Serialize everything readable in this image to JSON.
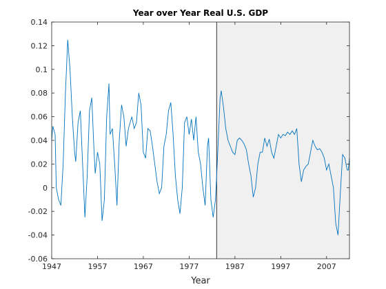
{
  "chart_data": {
    "type": "line",
    "title": "Year over Year Real U.S. GDP",
    "xlabel": "Year",
    "x": [
      1947,
      1947.25,
      1947.75,
      1948,
      1948.5,
      1949,
      1949.5,
      1950,
      1950.5,
      1951,
      1951.5,
      1952,
      1952.25,
      1952.75,
      1953.25,
      1953.75,
      1954.25,
      1954.75,
      1955.25,
      1955.75,
      1956.25,
      1956.5,
      1957,
      1957.5,
      1958,
      1958.5,
      1959,
      1959.5,
      1959.75,
      1960.25,
      1960.75,
      1961.25,
      1961.75,
      1962.25,
      1962.75,
      1963.25,
      1963.75,
      1964.5,
      1965,
      1965.5,
      1966,
      1966.5,
      1967,
      1967.5,
      1968,
      1968.5,
      1969,
      1969.5,
      1970,
      1970.5,
      1971,
      1971.5,
      1972,
      1972.5,
      1973,
      1973.5,
      1974,
      1974.5,
      1975,
      1975.5,
      1976,
      1976.5,
      1977,
      1977.5,
      1978,
      1978.5,
      1979,
      1979.5,
      1980,
      1980.5,
      1981,
      1981.25,
      1981.75,
      1982.25,
      1982.75,
      1983.25,
      1983.75,
      1984,
      1984.5,
      1985,
      1985.5,
      1986,
      1986.5,
      1987,
      1987.5,
      1988,
      1988.5,
      1989,
      1989.5,
      1990,
      1990.5,
      1991,
      1991.5,
      1992,
      1992.5,
      1993,
      1993.5,
      1994,
      1994.5,
      1995,
      1995.5,
      1996,
      1996.5,
      1997,
      1997.5,
      1998,
      1998.5,
      1999,
      1999.5,
      2000,
      2000.5,
      2001,
      2001.5,
      2002,
      2002.5,
      2003,
      2003.5,
      2004,
      2004.5,
      2005,
      2005.5,
      2006,
      2006.5,
      2007,
      2007.5,
      2008,
      2008.5,
      2009,
      2009.5,
      2010,
      2010.5,
      2011,
      2011.5,
      2011.75,
      2012
    ],
    "series": [
      {
        "color": "#0072bd",
        "values": [
          0.04,
          0.052,
          0.045,
          0.0,
          -0.01,
          -0.015,
          0.02,
          0.08,
          0.125,
          0.1,
          0.06,
          0.03,
          0.022,
          0.055,
          0.065,
          0.02,
          -0.025,
          0.01,
          0.065,
          0.076,
          0.03,
          0.012,
          0.03,
          0.02,
          -0.028,
          -0.01,
          0.06,
          0.088,
          0.045,
          0.05,
          0.02,
          -0.015,
          0.04,
          0.07,
          0.06,
          0.035,
          0.05,
          0.06,
          0.05,
          0.055,
          0.08,
          0.07,
          0.03,
          0.025,
          0.05,
          0.048,
          0.035,
          0.02,
          0.005,
          -0.005,
          0.0,
          0.035,
          0.045,
          0.065,
          0.072,
          0.045,
          0.01,
          -0.01,
          -0.022,
          0.0,
          0.055,
          0.06,
          0.045,
          0.058,
          0.04,
          0.06,
          0.03,
          0.02,
          0.0,
          -0.015,
          0.035,
          0.042,
          -0.01,
          -0.025,
          -0.01,
          0.03,
          0.075,
          0.082,
          0.068,
          0.05,
          0.04,
          0.035,
          0.03,
          0.028,
          0.04,
          0.042,
          0.04,
          0.037,
          0.032,
          0.02,
          0.01,
          -0.008,
          0.0,
          0.02,
          0.03,
          0.03,
          0.042,
          0.035,
          0.041,
          0.03,
          0.025,
          0.035,
          0.045,
          0.042,
          0.045,
          0.044,
          0.047,
          0.045,
          0.048,
          0.045,
          0.05,
          0.02,
          0.005,
          0.015,
          0.018,
          0.02,
          0.03,
          0.04,
          0.035,
          0.032,
          0.033,
          0.03,
          0.025,
          0.015,
          0.02,
          0.01,
          0.0,
          -0.03,
          -0.04,
          -0.005,
          0.028,
          0.025,
          0.015,
          0.015,
          0.025
        ]
      }
    ],
    "xlim": [
      1947,
      2012
    ],
    "xticks": [
      1947,
      1957,
      1967,
      1977,
      1987,
      1997,
      2007
    ],
    "ylim": [
      -0.06,
      0.14
    ],
    "yticks": [
      -0.06,
      -0.04,
      -0.02,
      0,
      0.02,
      0.04,
      0.06,
      0.08,
      0.1,
      0.12,
      0.14
    ],
    "shade_start": 1983,
    "shade_color": "#f0f0f0"
  }
}
